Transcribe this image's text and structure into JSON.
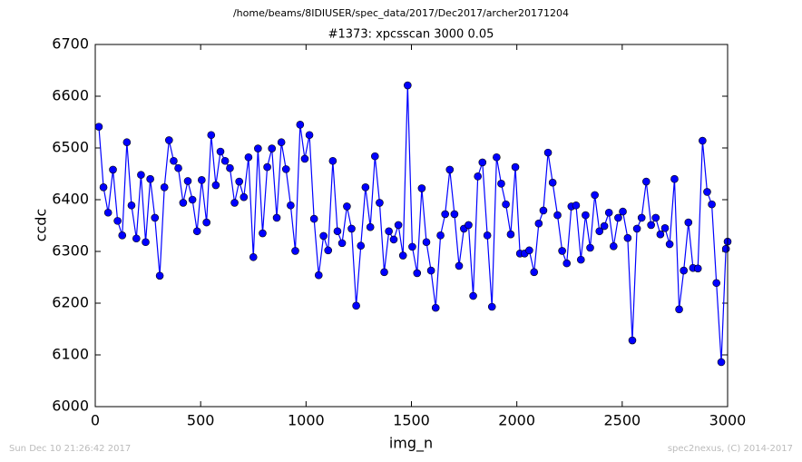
{
  "chart_data": {
    "type": "line",
    "suptitle": "/home/beams/8IDIUSER/spec_data/2017/Dec2017/archer20171204",
    "title": "#1373: xpcsscan 3000 0.05",
    "xlabel": "img_n",
    "ylabel": "ccdc",
    "footer_left": "Sun Dec 10 21:26:42 2017",
    "footer_right": "spec2nexus, (C) 2014-2017",
    "xlim": [
      0,
      3000
    ],
    "xticks": [
      0,
      500,
      1000,
      1500,
      2000,
      2500,
      3000
    ],
    "ylim": [
      6000,
      6700
    ],
    "yticks": [
      6000,
      6100,
      6200,
      6300,
      6400,
      6500,
      6600,
      6700
    ],
    "x": [
      17,
      39,
      61,
      84,
      106,
      128,
      150,
      172,
      195,
      217,
      239,
      261,
      283,
      306,
      328,
      350,
      372,
      394,
      417,
      439,
      461,
      483,
      505,
      528,
      550,
      572,
      594,
      616,
      639,
      661,
      683,
      705,
      727,
      750,
      772,
      794,
      816,
      838,
      861,
      883,
      905,
      927,
      949,
      972,
      994,
      1016,
      1038,
      1060,
      1083,
      1105,
      1127,
      1149,
      1171,
      1194,
      1216,
      1238,
      1260,
      1282,
      1305,
      1327,
      1349,
      1371,
      1393,
      1416,
      1438,
      1460,
      1482,
      1504,
      1527,
      1549,
      1571,
      1593,
      1615,
      1638,
      1660,
      1682,
      1704,
      1726,
      1749,
      1771,
      1793,
      1815,
      1837,
      1860,
      1882,
      1904,
      1926,
      1948,
      1971,
      1993,
      2015,
      2037,
      2059,
      2082,
      2104,
      2126,
      2148,
      2170,
      2193,
      2215,
      2237,
      2259,
      2281,
      2304,
      2326,
      2348,
      2370,
      2392,
      2415,
      2437,
      2459,
      2481,
      2503,
      2526,
      2548,
      2570,
      2592,
      2614,
      2637,
      2659,
      2681,
      2703,
      2725,
      2748,
      2770,
      2792,
      2814,
      2836,
      2859,
      2881,
      2903,
      2925,
      2947,
      2970,
      2992,
      3000
    ],
    "series": [
      {
        "name": "ccdc",
        "color": "#0000ff",
        "values": [
          6541,
          6424,
          6375,
          6458,
          6359,
          6331,
          6511,
          6389,
          6325,
          6448,
          6318,
          6440,
          6365,
          6253,
          6424,
          6515,
          6475,
          6461,
          6394,
          6436,
          6400,
          6339,
          6438,
          6356,
          6525,
          6428,
          6493,
          6475,
          6461,
          6394,
          6435,
          6405,
          6482,
          6289,
          6499,
          6335,
          6463,
          6499,
          6365,
          6511,
          6459,
          6389,
          6301,
          6545,
          6479,
          6525,
          6363,
          6254,
          6330,
          6302,
          6475,
          6339,
          6316,
          6387,
          6344,
          6195,
          6311,
          6424,
          6347,
          6484,
          6394,
          6260,
          6339,
          6323,
          6351,
          6292,
          6621,
          6309,
          6258,
          6422,
          6318,
          6263,
          6191,
          6331,
          6372,
          6458,
          6372,
          6272,
          6344,
          6351,
          6214,
          6445,
          6472,
          6331,
          6193,
          6482,
          6431,
          6391,
          6333,
          6463,
          6296,
          6296,
          6302,
          6260,
          6354,
          6379,
          6491,
          6433,
          6370,
          6301,
          6277,
          6387,
          6389,
          6284,
          6370,
          6307,
          6409,
          6339,
          6349,
          6375,
          6310,
          6365,
          6377,
          6326,
          6128,
          6344,
          6365,
          6435,
          6351,
          6365,
          6333,
          6345,
          6314,
          6440,
          6188,
          6263,
          6356,
          6268,
          6267,
          6514,
          6415,
          6391,
          6239,
          6086,
          6305,
          6319
        ]
      }
    ]
  }
}
